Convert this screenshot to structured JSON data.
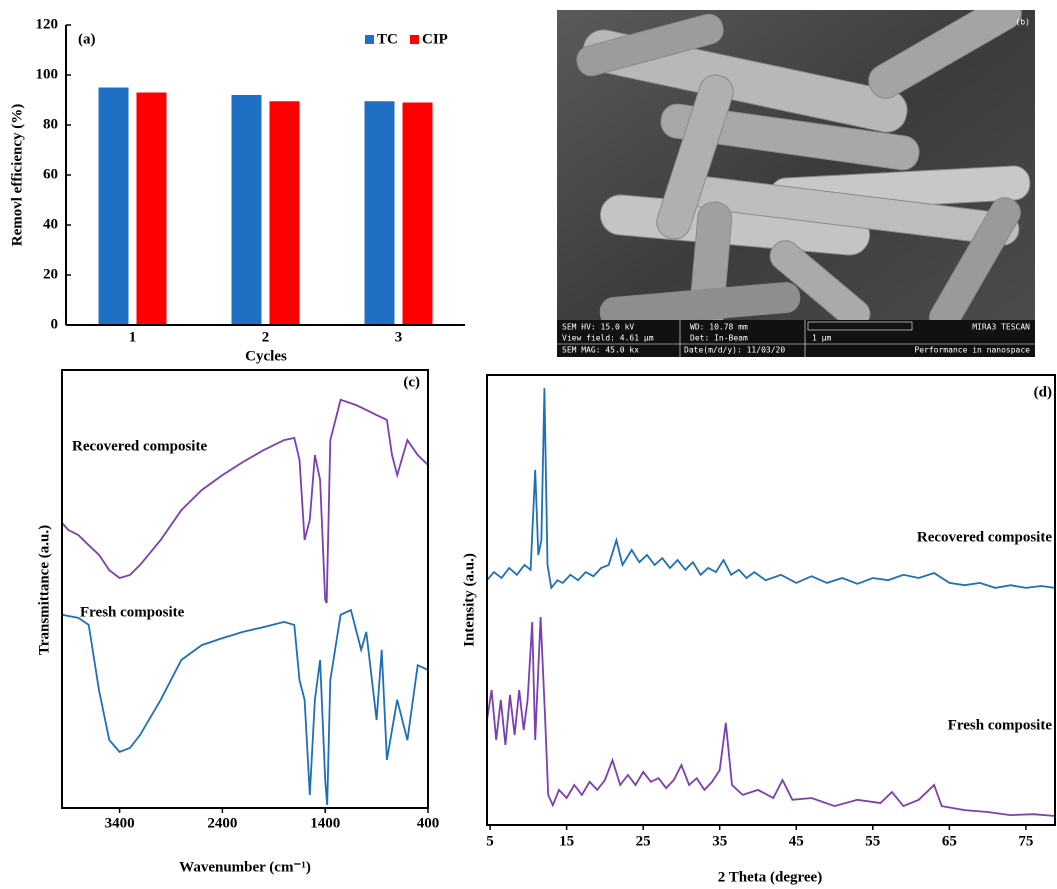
{
  "chart_data": [
    {
      "type": "bar",
      "label": "(a)",
      "x_label": "Cycles",
      "y_label": "Removl efficiency (%)",
      "categories": [
        "1",
        "2",
        "3"
      ],
      "series": [
        {
          "name": "TC",
          "color": "#1f6fc4",
          "values": [
            95,
            92,
            89.5
          ]
        },
        {
          "name": "CIP",
          "color": "#ff0000",
          "values": [
            93,
            89.5,
            89
          ]
        }
      ],
      "ylim": [
        0,
        120
      ],
      "yticks": [
        0,
        20,
        40,
        60,
        80,
        100,
        120
      ],
      "legend": "upper right",
      "grid": false
    },
    {
      "type": "line",
      "label": "(c)",
      "x_label": "Wavenumber (cm⁻¹)",
      "y_label": "Transmittance (a.u.)",
      "xlim": [
        3960,
        400
      ],
      "xticks": [
        3400,
        2400,
        1400,
        400
      ],
      "ylim": [
        0,
        100
      ],
      "grid": false,
      "series": [
        {
          "name": "Recovered composite",
          "color": "#7b3fb0",
          "x": [
            3960,
            3900,
            3800,
            3700,
            3600,
            3500,
            3400,
            3300,
            3200,
            3000,
            2800,
            2600,
            2400,
            2200,
            2000,
            1800,
            1700,
            1650,
            1600,
            1550,
            1500,
            1450,
            1400,
            1385,
            1350,
            1250,
            1100,
            1000,
            900,
            800,
            750,
            700,
            600,
            500,
            400
          ],
          "values": [
            65.1,
            63.5,
            62.3,
            60.0,
            57.8,
            54.3,
            52.5,
            53.2,
            55.5,
            61.2,
            68.0,
            72.6,
            76.0,
            79.0,
            81.7,
            84.0,
            84.5,
            79.5,
            61.2,
            65.8,
            80.6,
            74.9,
            47.5,
            46.8,
            84.0,
            93.2,
            92.0,
            90.9,
            89.7,
            88.6,
            80.6,
            76.0,
            84.0,
            80.6,
            78.3
          ]
        },
        {
          "name": "Fresh composite",
          "color": "#1f6fb4",
          "x": [
            3960,
            3800,
            3700,
            3600,
            3500,
            3400,
            3300,
            3200,
            3000,
            2800,
            2600,
            2400,
            2200,
            2000,
            1800,
            1700,
            1650,
            1600,
            1550,
            1500,
            1450,
            1400,
            1380,
            1350,
            1250,
            1150,
            1050,
            1000,
            900,
            850,
            800,
            700,
            600,
            500,
            400
          ],
          "values": [
            44.1,
            43.4,
            41.8,
            26.9,
            15.5,
            12.8,
            13.7,
            16.7,
            24.7,
            33.8,
            37.2,
            38.8,
            40.2,
            41.3,
            42.5,
            41.8,
            29.2,
            24.7,
            3.0,
            24.7,
            33.8,
            6.4,
            0.7,
            29.2,
            44.1,
            45.2,
            36.1,
            40.2,
            20.1,
            36.1,
            11.0,
            24.7,
            15.5,
            32.6,
            31.5
          ]
        }
      ]
    },
    {
      "type": "line",
      "label": "(d)",
      "x_label": "2 Theta (degree)",
      "y_label": "Intensity (a.u.)",
      "xlim": [
        4.6,
        78.8
      ],
      "xticks": [
        5,
        15,
        25,
        35,
        45,
        55,
        65,
        75
      ],
      "ylim": [
        0,
        100
      ],
      "grid": false,
      "series": [
        {
          "name": "Recovered composite",
          "color": "#1f6fb4",
          "x": [
            4.6,
            5.5,
            6.5,
            7.5,
            8.5,
            9.5,
            10.3,
            10.9,
            11.3,
            11.7,
            12.1,
            12.5,
            13.0,
            13.8,
            14.5,
            15.5,
            16.5,
            17.5,
            18.5,
            19.5,
            20.5,
            21.5,
            22.3,
            23.5,
            24.5,
            25.5,
            26.5,
            27.5,
            28.5,
            29.5,
            30.5,
            31.5,
            32.5,
            33.5,
            34.5,
            35.5,
            36.5,
            37.5,
            38.5,
            39.5,
            41,
            43,
            45,
            47,
            49,
            51,
            53,
            55,
            57,
            59,
            61,
            63,
            65,
            67,
            69,
            71,
            73,
            75,
            77,
            78.8
          ],
          "values": [
            54.4,
            56.2,
            54.9,
            57.1,
            55.6,
            57.8,
            56.7,
            78.9,
            60.0,
            63.3,
            97.1,
            57.8,
            52.7,
            54.4,
            53.8,
            55.6,
            54.4,
            56.2,
            55.3,
            57.1,
            57.8,
            63.3,
            57.8,
            61.1,
            58.4,
            60.0,
            57.8,
            59.3,
            57.1,
            58.9,
            56.7,
            58.4,
            55.6,
            57.1,
            56.2,
            58.9,
            55.6,
            56.7,
            54.9,
            56.2,
            54.4,
            55.6,
            53.8,
            55.3,
            53.8,
            54.9,
            53.6,
            54.9,
            54.4,
            55.6,
            54.9,
            56.0,
            53.8,
            53.3,
            53.8,
            52.7,
            53.3,
            52.7,
            53.1,
            52.7
          ]
        },
        {
          "name": "Fresh composite",
          "color": "#7b3fb0",
          "x": [
            4.6,
            5.2,
            5.8,
            6.4,
            7.0,
            7.6,
            8.2,
            8.8,
            9.4,
            9.9,
            10.5,
            10.9,
            11.6,
            12.2,
            12.6,
            13.2,
            14,
            15,
            16,
            17,
            18,
            19,
            20,
            21,
            22,
            23,
            24,
            25,
            26,
            27,
            28,
            29,
            30,
            31,
            32,
            33,
            34,
            35,
            35.8,
            36.6,
            38,
            40,
            42,
            43.2,
            44.5,
            47,
            50,
            53,
            56,
            57.5,
            59,
            61,
            63,
            64,
            67,
            70,
            73,
            76,
            78.8
          ],
          "values": [
            23.3,
            30.0,
            18.9,
            27.8,
            17.8,
            28.9,
            20.0,
            30.0,
            21.1,
            27.8,
            45.1,
            18.9,
            46.2,
            23.3,
            6.7,
            4.4,
            7.8,
            6.0,
            8.9,
            6.7,
            9.6,
            7.8,
            10.0,
            14.4,
            8.9,
            11.1,
            8.9,
            11.8,
            9.6,
            10.4,
            8.2,
            10.0,
            13.3,
            8.9,
            10.4,
            7.8,
            9.6,
            12.2,
            22.7,
            8.9,
            6.7,
            7.8,
            6.0,
            10.0,
            5.6,
            6.0,
            4.2,
            5.6,
            4.9,
            7.3,
            4.2,
            5.6,
            8.9,
            4.2,
            3.3,
            2.9,
            2.2,
            2.4,
            2.0
          ]
        }
      ]
    }
  ],
  "sem_image": {
    "label": "(b)",
    "info": [
      "SEM HV: 15.0 kV",
      "WD: 10.78 mm",
      "MIRA3 TESCAN",
      "View field: 4.61 µm",
      "Det: In-Beam",
      "1 µm",
      "SEM MAG: 45.0 kx",
      "Date(m/d/y): 11/03/20",
      "Performance in nanospace"
    ]
  }
}
